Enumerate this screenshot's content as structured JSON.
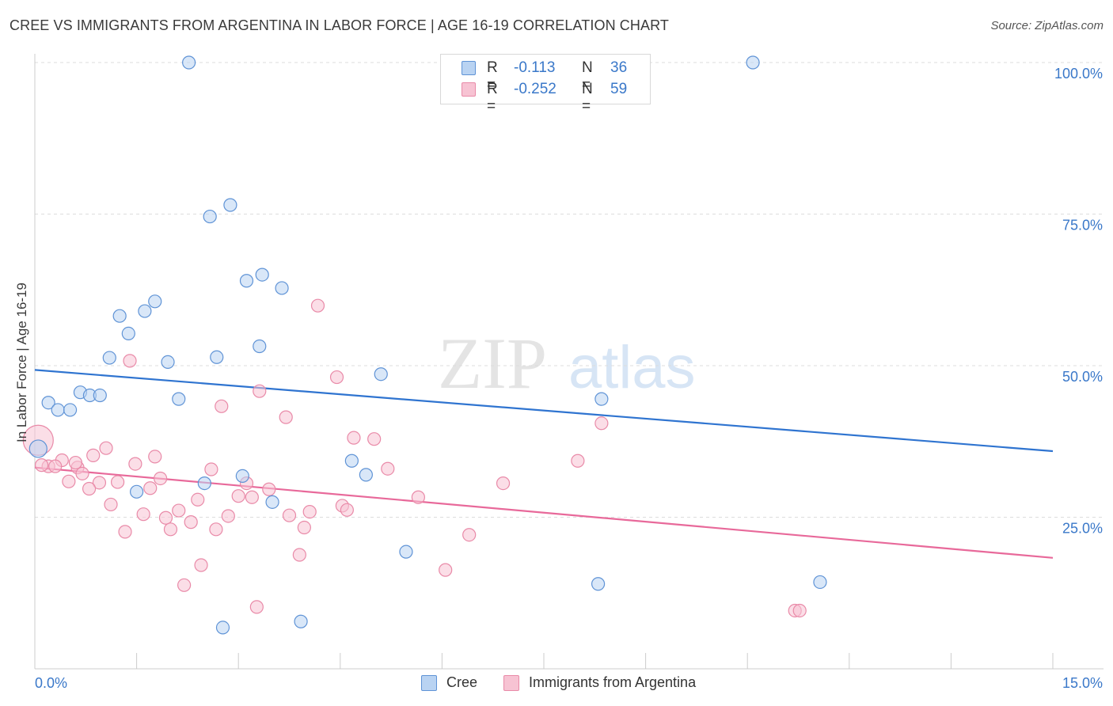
{
  "title": "CREE VS IMMIGRANTS FROM ARGENTINA IN LABOR FORCE | AGE 16-19 CORRELATION CHART",
  "source": "Source: ZipAtlas.com",
  "watermark": {
    "zip": "ZIP",
    "atlas": "atlas"
  },
  "legend": {
    "rows": [
      {
        "r_label": "R =",
        "r_value": "-0.113",
        "n_label": "N =",
        "n_value": "36"
      },
      {
        "r_label": "R =",
        "r_value": "-0.252",
        "n_label": "N =",
        "n_value": "59"
      }
    ]
  },
  "bottom_legend": [
    "Cree",
    "Immigrants from Argentina"
  ],
  "colors": {
    "cree_fill": "#b9d3f2",
    "cree_stroke": "#5f93d6",
    "cree_line": "#2f74d0",
    "arg_fill": "#f7c3d3",
    "arg_stroke": "#e98aa8",
    "arg_line": "#e8699a",
    "tick_label": "#3a78c9",
    "grid": "#dddddd"
  },
  "chart_data": {
    "type": "scatter",
    "title": "CREE VS IMMIGRANTS FROM ARGENTINA IN LABOR FORCE | AGE 16-19 CORRELATION CHART",
    "xlabel": "",
    "ylabel": "In Labor Force | Age 16-19",
    "xlim": [
      0,
      15
    ],
    "ylim": [
      0,
      102
    ],
    "x_tick_labels": [
      "0.0%",
      "15.0%"
    ],
    "y_ticks": [
      25,
      50,
      75,
      100
    ],
    "y_tick_labels": [
      "25.0%",
      "50.0%",
      "75.0%",
      "100.0%"
    ],
    "grid": "horizontal dashed",
    "legend_position": "top-center",
    "series": [
      {
        "name": "Cree",
        "R": -0.113,
        "N": 36,
        "trend": {
          "x": [
            0,
            15
          ],
          "y": [
            49.3,
            35.9
          ]
        },
        "points": [
          [
            2.27,
            100
          ],
          [
            10.58,
            100
          ],
          [
            2.88,
            76.5
          ],
          [
            2.58,
            74.6
          ],
          [
            3.35,
            65
          ],
          [
            3.12,
            64
          ],
          [
            3.64,
            62.8
          ],
          [
            1.77,
            60.6
          ],
          [
            1.62,
            59
          ],
          [
            1.25,
            58.2
          ],
          [
            1.38,
            55.3
          ],
          [
            3.31,
            53.2
          ],
          [
            1.1,
            51.3
          ],
          [
            2.68,
            51.4
          ],
          [
            1.96,
            50.6
          ],
          [
            5.1,
            48.6
          ],
          [
            0.67,
            45.6
          ],
          [
            0.81,
            45.1
          ],
          [
            0.96,
            45.1
          ],
          [
            2.12,
            44.5
          ],
          [
            8.35,
            44.5
          ],
          [
            0.2,
            43.9
          ],
          [
            0.34,
            42.7
          ],
          [
            0.52,
            42.7
          ],
          [
            0.05,
            36.3
          ],
          [
            4.67,
            34.3
          ],
          [
            3.06,
            31.8
          ],
          [
            4.88,
            32
          ],
          [
            2.5,
            30.6
          ],
          [
            1.5,
            29.2
          ],
          [
            3.5,
            27.5
          ],
          [
            5.47,
            19.3
          ],
          [
            8.3,
            14
          ],
          [
            11.57,
            14.3
          ],
          [
            2.77,
            6.8
          ],
          [
            3.92,
            7.8
          ]
        ]
      },
      {
        "name": "Immigrants from Argentina",
        "R": -0.252,
        "N": 59,
        "trend": {
          "x": [
            0,
            15
          ],
          "y": [
            33.2,
            18.3
          ]
        },
        "points": [
          [
            4.17,
            59.9
          ],
          [
            1.4,
            50.8
          ],
          [
            4.45,
            48.1
          ],
          [
            3.31,
            45.8
          ],
          [
            2.75,
            43.3
          ],
          [
            3.7,
            41.5
          ],
          [
            8.35,
            40.5
          ],
          [
            4.7,
            38.1
          ],
          [
            5.0,
            37.9
          ],
          [
            1.05,
            36.4
          ],
          [
            0.86,
            35.2
          ],
          [
            1.77,
            35
          ],
          [
            8.0,
            34.3
          ],
          [
            0.4,
            34.4
          ],
          [
            1.48,
            33.8
          ],
          [
            0.2,
            33.4
          ],
          [
            0.3,
            33.4
          ],
          [
            0.63,
            33.2
          ],
          [
            2.6,
            32.9
          ],
          [
            5.2,
            33
          ],
          [
            0.7,
            32.2
          ],
          [
            1.85,
            31.4
          ],
          [
            0.5,
            30.9
          ],
          [
            0.95,
            30.7
          ],
          [
            1.22,
            30.8
          ],
          [
            3.12,
            30.6
          ],
          [
            6.9,
            30.6
          ],
          [
            1.7,
            29.8
          ],
          [
            3.45,
            29.6
          ],
          [
            0.8,
            29.7
          ],
          [
            3.0,
            28.5
          ],
          [
            3.2,
            28.3
          ],
          [
            2.4,
            27.9
          ],
          [
            5.65,
            28.3
          ],
          [
            1.12,
            27.1
          ],
          [
            4.53,
            26.9
          ],
          [
            2.12,
            26.1
          ],
          [
            4.6,
            26.2
          ],
          [
            4.05,
            25.9
          ],
          [
            1.6,
            25.5
          ],
          [
            1.93,
            24.9
          ],
          [
            2.85,
            25.2
          ],
          [
            3.75,
            25.3
          ],
          [
            2.3,
            24.2
          ],
          [
            3.97,
            23.3
          ],
          [
            2.0,
            23
          ],
          [
            2.67,
            23
          ],
          [
            1.33,
            22.6
          ],
          [
            6.4,
            22.1
          ],
          [
            3.9,
            18.8
          ],
          [
            2.45,
            17.1
          ],
          [
            6.05,
            16.3
          ],
          [
            2.2,
            13.8
          ],
          [
            3.27,
            10.2
          ],
          [
            11.2,
            9.6
          ],
          [
            11.27,
            9.6
          ],
          [
            0.05,
            37.7
          ],
          [
            0.1,
            33.6
          ],
          [
            0.6,
            34
          ]
        ]
      }
    ]
  }
}
